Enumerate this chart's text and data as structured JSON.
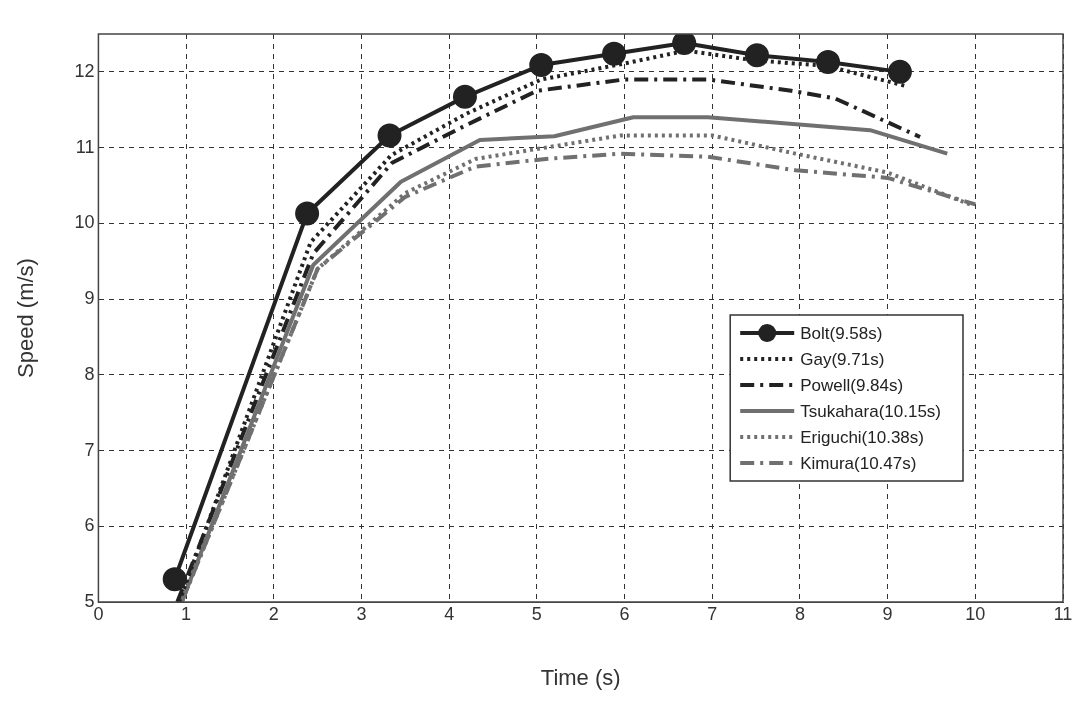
{
  "chart_data": {
    "type": "line",
    "xlabel": "Time (s)",
    "ylabel": "Speed (m/s)",
    "xlim": [
      0,
      11
    ],
    "xticks": [
      0,
      1,
      2,
      3,
      4,
      5,
      6,
      7,
      8,
      9,
      10,
      11
    ],
    "ylim": [
      5,
      12.5
    ],
    "yticks": [
      5,
      6,
      7,
      8,
      9,
      10,
      11,
      12
    ],
    "grid": true,
    "legend": "right",
    "series": [
      {
        "name": "Bolt(9.58s)",
        "color": "#222222",
        "line_style": "solid",
        "marker": "circle",
        "x": [
          0.87,
          2.38,
          3.32,
          4.18,
          5.05,
          5.88,
          6.68,
          7.51,
          8.32,
          9.14
        ],
        "values": [
          5.3,
          10.13,
          11.16,
          11.67,
          12.09,
          12.24,
          12.38,
          12.22,
          12.13,
          12.0
        ]
      },
      {
        "name": "Gay(9.71s)",
        "color": "#222222",
        "line_style": "dotted",
        "marker": "none",
        "x": [
          0.92,
          2.42,
          3.34,
          4.2,
          5.05,
          6.0,
          6.7,
          7.5,
          8.3,
          9.22
        ],
        "values": [
          5.0,
          9.75,
          10.9,
          11.45,
          11.9,
          12.11,
          12.28,
          12.15,
          12.08,
          11.81
        ]
      },
      {
        "name": "Powell(9.84s)",
        "color": "#222222",
        "line_style": "dashdot",
        "marker": "none",
        "x": [
          0.9,
          2.45,
          3.35,
          4.2,
          5.0,
          6.0,
          6.95,
          7.9,
          8.4,
          9.37
        ],
        "values": [
          5.0,
          9.6,
          10.8,
          11.3,
          11.75,
          11.9,
          11.9,
          11.75,
          11.65,
          11.14
        ]
      },
      {
        "name": "Tsukahara(10.15s)",
        "color": "#707070",
        "line_style": "solid",
        "marker": "none",
        "x": [
          0.95,
          2.45,
          3.45,
          4.35,
          5.2,
          6.1,
          6.95,
          8.8,
          9.68
        ],
        "values": [
          5.0,
          9.45,
          10.55,
          11.1,
          11.15,
          11.4,
          11.4,
          11.23,
          10.92
        ]
      },
      {
        "name": "Eriguchi(10.38s)",
        "color": "#707070",
        "line_style": "dotted",
        "marker": "none",
        "x": [
          0.95,
          2.5,
          3.5,
          4.3,
          5.1,
          5.95,
          7.0,
          7.95,
          9.0,
          9.94
        ],
        "values": [
          5.0,
          9.4,
          10.4,
          10.85,
          11.0,
          11.16,
          11.16,
          10.92,
          10.67,
          10.25
        ]
      },
      {
        "name": "Kimura(10.47s)",
        "color": "#707070",
        "line_style": "dashdot",
        "marker": "none",
        "x": [
          0.95,
          2.5,
          3.5,
          4.3,
          5.1,
          5.95,
          6.95,
          7.95,
          9.0,
          10.0
        ],
        "values": [
          5.0,
          9.4,
          10.35,
          10.75,
          10.85,
          10.92,
          10.88,
          10.7,
          10.6,
          10.25
        ]
      }
    ]
  }
}
